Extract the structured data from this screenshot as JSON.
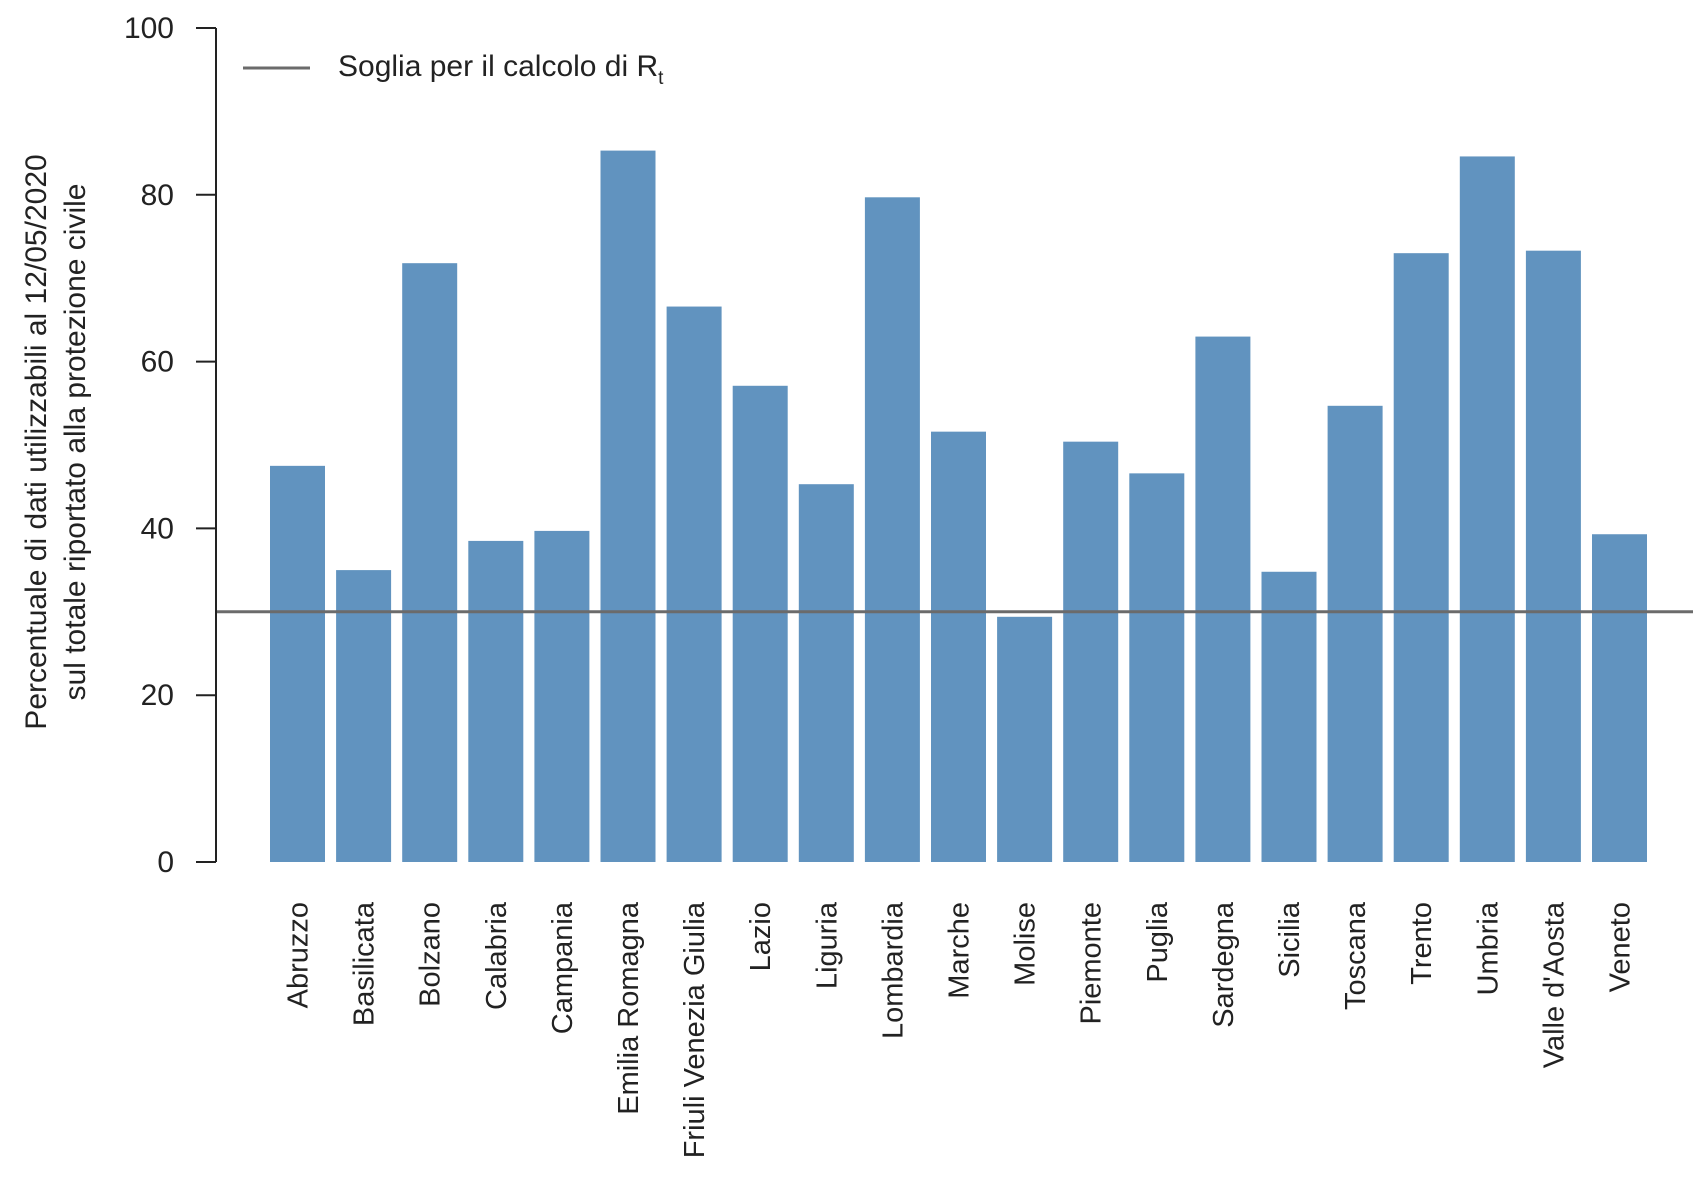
{
  "chart_data": {
    "type": "bar",
    "title": "",
    "ylabel_lines": [
      "Percentuale di dati utilizzabili al 12/05/2020",
      "sul totale riportato alla protezione civile"
    ],
    "xlabel": "",
    "ylim": [
      0,
      100
    ],
    "yticks": [
      0,
      20,
      40,
      60,
      80,
      100
    ],
    "categories": [
      "Abruzzo",
      "Basilicata",
      "Bolzano",
      "Calabria",
      "Campania",
      "Emilia Romagna",
      "Friuli Venezia Giulia",
      "Lazio",
      "Liguria",
      "Lombardia",
      "Marche",
      "Molise",
      "Piemonte",
      "Puglia",
      "Sardegna",
      "Sicilia",
      "Toscana",
      "Trento",
      "Umbria",
      "Valle d'Aosta",
      "Veneto"
    ],
    "values": [
      47.5,
      35.0,
      71.8,
      38.5,
      39.7,
      85.3,
      66.6,
      57.1,
      45.3,
      79.7,
      51.6,
      29.4,
      50.4,
      46.6,
      63.0,
      34.8,
      54.7,
      73.0,
      84.6,
      73.3,
      39.3
    ],
    "threshold": {
      "value": 30,
      "legend_label": "Soglia per il calcolo di R",
      "legend_subscript": "t"
    },
    "legend_position": "top-left",
    "grid": false,
    "colors": {
      "bar": "#6193bf",
      "threshold": "#6b6b6b",
      "axis": "#222222"
    }
  }
}
